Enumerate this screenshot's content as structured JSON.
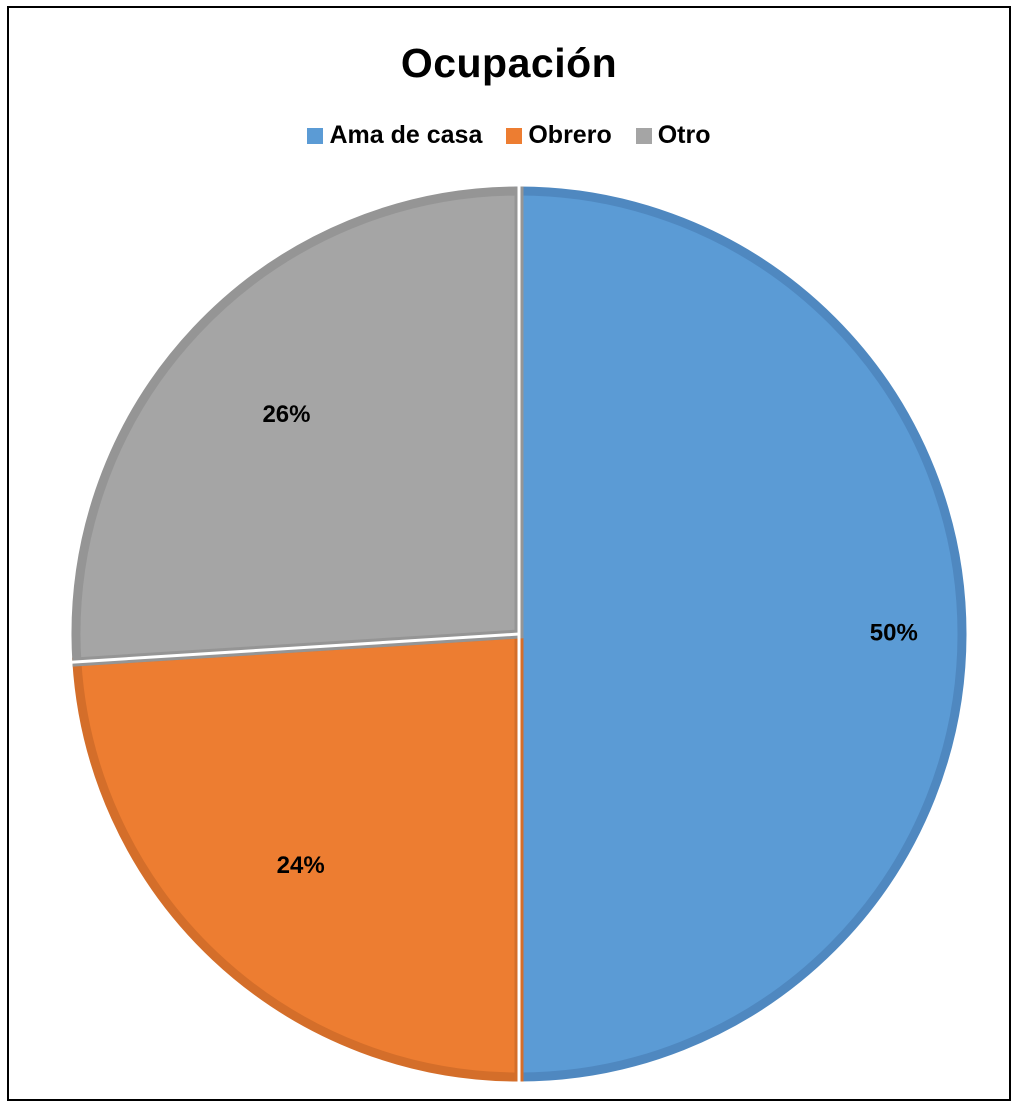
{
  "chart_data": {
    "type": "pie",
    "title": "Ocupación",
    "categories": [
      "Ama de casa",
      "Obrero",
      "Otro"
    ],
    "values": [
      50,
      24,
      26
    ],
    "labels": [
      "50%",
      "24%",
      "26%"
    ],
    "colors": [
      "#5B9BD5",
      "#ED7D31",
      "#A5A5A5"
    ],
    "stroke_colors": [
      "#4F88C0",
      "#D46E2A",
      "#959595"
    ],
    "legend_position": "top",
    "start_angle": "12 o'clock",
    "direction": "clockwise"
  }
}
